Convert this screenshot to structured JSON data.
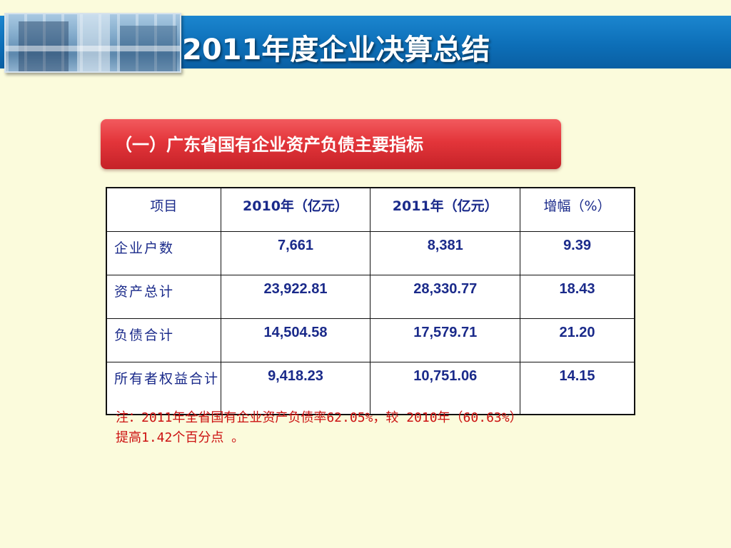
{
  "header": {
    "title": "2011年度企业决算总结"
  },
  "section": {
    "title": "（一）广东省国有企业资产负债主要指标"
  },
  "table": {
    "columns": [
      "项目",
      "2010年（亿元）",
      "2011年（亿元）",
      "增幅（%）"
    ],
    "rows": [
      [
        "企业户数",
        "7,661",
        "8,381",
        "9.39"
      ],
      [
        "资产总计",
        "23,922.81",
        "28,330.77",
        "18.43"
      ],
      [
        "负债合计",
        "14,504.58",
        "17,579.71",
        "21.20"
      ],
      [
        "所有者权益合计",
        "9,418.23",
        "10,751.06",
        "14.15"
      ]
    ]
  },
  "note": {
    "line1": "注：2011年全省国有企业资产负债率62.05%，较 2010年（60.63%）",
    "line2": "提高1.42个百分点 。"
  },
  "colors": {
    "title_bar": "#0d6fb8",
    "banner": "#e3353a",
    "table_text": "#1a2a8a",
    "note_text": "#cc1111",
    "background": "#fbfbdc"
  }
}
